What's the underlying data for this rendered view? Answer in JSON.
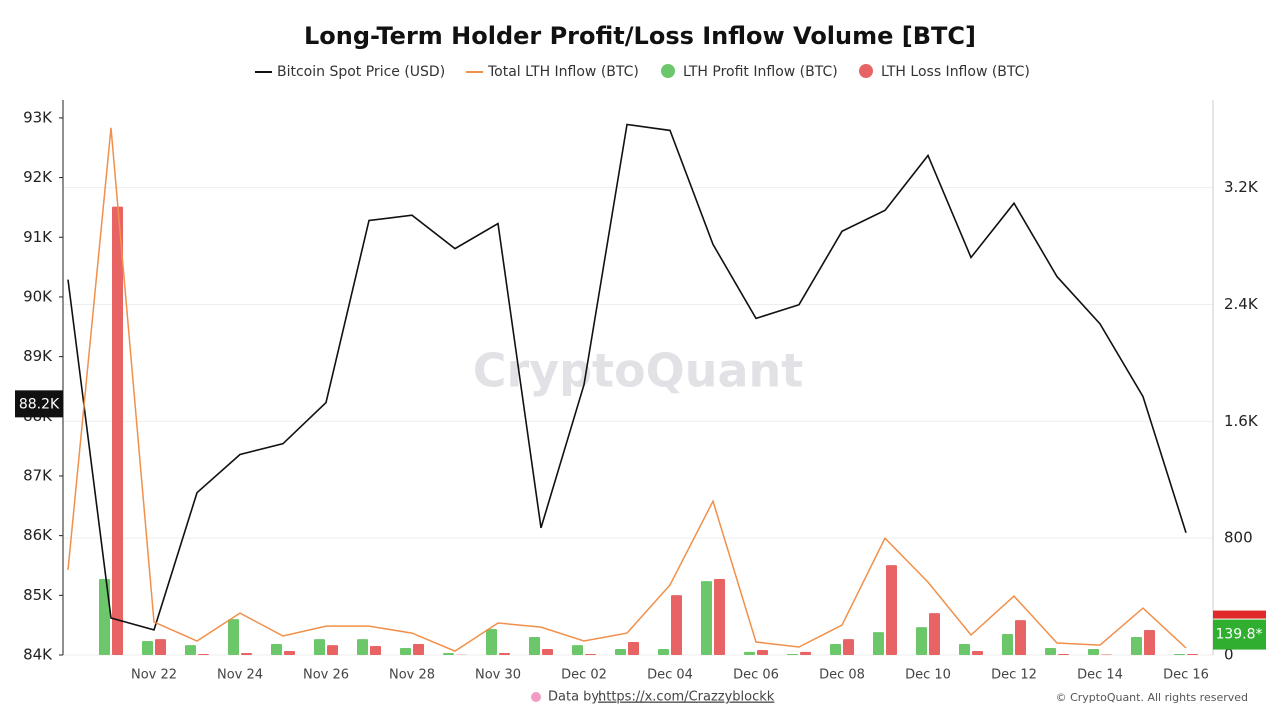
{
  "chart_data": {
    "type": "combo",
    "title": "Long-Term Holder Profit/Loss Inflow Volume [BTC]",
    "categories": [
      null,
      null,
      "Nov 22",
      null,
      "Nov 24",
      null,
      "Nov 26",
      null,
      "Nov 28",
      null,
      "Nov 30",
      null,
      "Dec 02",
      null,
      "Dec 04",
      null,
      "Dec 06",
      null,
      "Dec 08",
      null,
      "Dec 10",
      null,
      "Dec 12",
      null,
      "Dec 14",
      null,
      "Dec 16"
    ],
    "series": [
      {
        "name": "Bitcoin Spot Price (USD)",
        "type": "line",
        "axis": "y",
        "color": "#111111",
        "values": [
          90290,
          84620,
          84420,
          86720,
          87360,
          87540,
          88230,
          91280,
          91370,
          90810,
          91230,
          86130,
          88530,
          92890,
          92790,
          90880,
          89640,
          89870,
          91100,
          91450,
          92370,
          90660,
          91570,
          90340,
          89550,
          88330,
          86050
        ]
      },
      {
        "name": "Total LTH Inflow (BTC)",
        "type": "line",
        "axis": "y2",
        "color": "#f0904a",
        "values": [
          581,
          3610,
          226,
          96,
          287,
          130,
          198,
          198,
          150,
          27,
          219,
          191,
          96,
          150,
          479,
          1053,
          89,
          55,
          205,
          800,
          499,
          137,
          403,
          82,
          68,
          321,
          48
        ]
      },
      {
        "name": "LTH Profit Inflow (BTC)",
        "type": "bar",
        "axis": "y2",
        "color": "#6cc76a",
        "values": [
          null,
          520,
          96,
          68,
          246,
          75,
          109,
          109,
          48,
          14,
          178,
          123,
          68,
          41,
          41,
          506,
          21,
          7,
          75,
          157,
          191,
          75,
          144,
          48,
          41,
          123,
          7
        ]
      },
      {
        "name": "LTH Loss Inflow (BTC)",
        "type": "bar",
        "axis": "y2",
        "color": "#e86464",
        "values": [
          null,
          3070,
          109,
          7,
          14,
          27,
          68,
          62,
          75,
          2,
          14,
          41,
          7,
          89,
          410,
          520,
          34,
          21,
          109,
          615,
          287,
          27,
          239,
          7,
          3,
          171,
          7
        ]
      }
    ],
    "ylim": [
      84000,
      93300
    ],
    "yticks": [
      {
        "value": 84000,
        "label": "84K"
      },
      {
        "value": 85000,
        "label": "85K"
      },
      {
        "value": 86000,
        "label": "86K"
      },
      {
        "value": 87000,
        "label": "87K"
      },
      {
        "value": 88000,
        "label": "88K"
      },
      {
        "value": 89000,
        "label": "89K"
      },
      {
        "value": 90000,
        "label": "90K"
      },
      {
        "value": 91000,
        "label": "91K"
      },
      {
        "value": 92000,
        "label": "92K"
      },
      {
        "value": 93000,
        "label": "93K"
      }
    ],
    "y2lim": [
      0,
      3800
    ],
    "y2ticks": [
      0,
      800,
      {
        "value": 1600,
        "label": "1.6K"
      },
      {
        "value": 2400,
        "label": "2.4K"
      },
      {
        "value": 3200,
        "label": "3.2K"
      }
    ],
    "grid": "y2",
    "price_tag": {
      "value": 88200,
      "label": "88.2K"
    },
    "inflow_tag": {
      "value": 139.8,
      "label": "139.8*"
    },
    "watermark": "CryptoQuant"
  },
  "footer": {
    "credit": "Data by:",
    "link": "https://x.com/Crazzyblockk",
    "copyright": "© CryptoQuant. All rights reserved"
  }
}
